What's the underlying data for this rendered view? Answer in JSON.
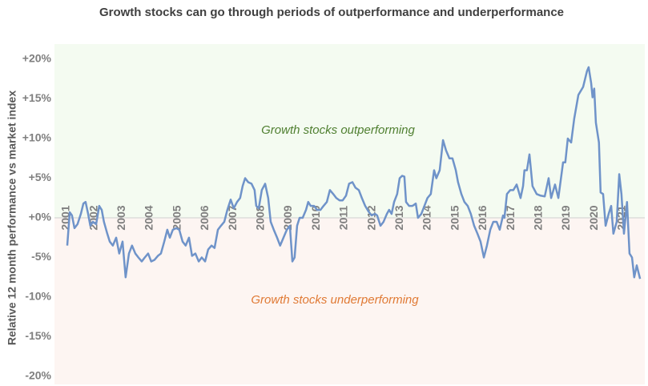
{
  "chart_data": {
    "type": "line",
    "title": "Growth stocks can go through periods of outperformance and underperformance",
    "ylabel": "Relative 12 month performance vs market index",
    "annotations": [
      {
        "text": "Growth stocks outperforming",
        "color": "#4f7f30"
      },
      {
        "text": "Growth stocks underperforming",
        "color": "#e07a35"
      }
    ],
    "xlim": [
      2000.57,
      2021.81
    ],
    "xticks": [
      2001,
      2002,
      2003,
      2004,
      2005,
      2006,
      2007,
      2008,
      2009,
      2010,
      2011,
      2012,
      2013,
      2014,
      2015,
      2016,
      2017,
      2018,
      2019,
      2020,
      2021
    ],
    "ylim": [
      -20,
      20
    ],
    "yticks": [
      {
        "value": 20,
        "label": "+20%"
      },
      {
        "value": 15,
        "label": "+15%"
      },
      {
        "value": 10,
        "label": "+10%"
      },
      {
        "value": 5,
        "label": "+5%"
      },
      {
        "value": 0,
        "label": "+0%"
      },
      {
        "value": -5,
        "label": "-5%"
      },
      {
        "value": -10,
        "label": "-10%"
      },
      {
        "value": -15,
        "label": "-15%"
      },
      {
        "value": -20,
        "label": "-20%"
      }
    ],
    "x": [
      2001.03,
      2001.12,
      2001.2,
      2001.29,
      2001.4,
      2001.52,
      2001.61,
      2001.69,
      2001.78,
      2001.86,
      2001.95,
      2002.07,
      2002.18,
      2002.27,
      2002.35,
      2002.47,
      2002.56,
      2002.67,
      2002.79,
      2002.9,
      2003.02,
      2003.13,
      2003.25,
      2003.36,
      2003.48,
      2003.59,
      2003.71,
      2003.82,
      2003.94,
      2004.05,
      2004.17,
      2004.29,
      2004.4,
      2004.52,
      2004.63,
      2004.72,
      2004.83,
      2004.95,
      2005.06,
      2005.18,
      2005.29,
      2005.41,
      2005.52,
      2005.64,
      2005.76,
      2005.87,
      2005.99,
      2006.1,
      2006.22,
      2006.33,
      2006.45,
      2006.56,
      2006.68,
      2006.79,
      2006.91,
      2007.02,
      2007.14,
      2007.25,
      2007.34,
      2007.43,
      2007.54,
      2007.66,
      2007.77,
      2007.83,
      2007.92,
      2008.03,
      2008.15,
      2008.26,
      2008.35,
      2008.46,
      2008.58,
      2008.69,
      2008.81,
      2008.93,
      2009.04,
      2009.13,
      2009.21,
      2009.3,
      2009.39,
      2009.5,
      2009.62,
      2009.7,
      2009.79,
      2009.91,
      2010.02,
      2010.14,
      2010.25,
      2010.37,
      2010.48,
      2010.6,
      2010.71,
      2010.83,
      2010.94,
      2011.06,
      2011.17,
      2011.29,
      2011.4,
      2011.52,
      2011.63,
      2011.75,
      2011.87,
      2011.98,
      2012.1,
      2012.18,
      2012.3,
      2012.41,
      2012.53,
      2012.61,
      2012.7,
      2012.79,
      2012.9,
      2012.99,
      2013.08,
      2013.16,
      2013.22,
      2013.33,
      2013.45,
      2013.57,
      2013.65,
      2013.77,
      2013.88,
      2013.99,
      2014.11,
      2014.23,
      2014.31,
      2014.43,
      2014.55,
      2014.66,
      2014.78,
      2014.89,
      2015.01,
      2015.09,
      2015.21,
      2015.32,
      2015.44,
      2015.55,
      2015.67,
      2015.79,
      2015.9,
      2016.02,
      2016.13,
      2016.25,
      2016.36,
      2016.48,
      2016.59,
      2016.71,
      2016.76,
      2016.85,
      2016.97,
      2017.08,
      2017.2,
      2017.34,
      2017.43,
      2017.48,
      2017.57,
      2017.66,
      2017.77,
      2017.92,
      2018.06,
      2018.21,
      2018.35,
      2018.44,
      2018.58,
      2018.7,
      2018.87,
      2018.95,
      2019.04,
      2019.16,
      2019.27,
      2019.42,
      2019.59,
      2019.73,
      2019.79,
      2019.88,
      2019.93,
      2019.99,
      2020.05,
      2020.16,
      2020.22,
      2020.31,
      2020.4,
      2020.51,
      2020.6,
      2020.68,
      2020.8,
      2020.89,
      2020.97,
      2021.06,
      2021.17,
      2021.26,
      2021.35,
      2021.43,
      2021.52,
      2021.64
    ],
    "series": [
      {
        "color": "#6f93c9",
        "values": [
          -3.5,
          0.7,
          0.3,
          -1.3,
          -0.8,
          0.5,
          1.8,
          2,
          0.5,
          -1,
          -0.5,
          -0.8,
          1.5,
          1,
          -0.5,
          -2,
          -3,
          -3.5,
          -2.5,
          -4.5,
          -3,
          -7.5,
          -4.5,
          -3.5,
          -4.5,
          -5,
          -5.5,
          -5,
          -4.5,
          -5.5,
          -5.3,
          -4.8,
          -4.5,
          -3,
          -1.5,
          -2.5,
          -1.5,
          -1.3,
          -1.5,
          -3,
          -3.5,
          -2.5,
          -4.8,
          -4.5,
          -5.5,
          -5,
          -5.5,
          -4,
          -3.5,
          -3.8,
          -1.5,
          -1,
          -0.5,
          1,
          2.3,
          1.2,
          2,
          2.5,
          4,
          5,
          4.5,
          4.3,
          3.5,
          1.5,
          1.2,
          3.5,
          4.3,
          2.5,
          -0.5,
          -1.5,
          -2.5,
          -3.5,
          -2.5,
          -1.5,
          -1,
          -5.5,
          -5,
          -1,
          0,
          0,
          1,
          2,
          1.5,
          1.5,
          1,
          1,
          1.5,
          2,
          3.5,
          3,
          2.5,
          2.2,
          2.2,
          2.8,
          4.3,
          4.5,
          3.8,
          3.5,
          2.5,
          1.5,
          0.8,
          0.3,
          0.5,
          0.3,
          -1,
          -0.5,
          0.5,
          1,
          0.5,
          2,
          3,
          5,
          5.3,
          5.2,
          2,
          1.5,
          1.5,
          1.8,
          0,
          0.5,
          1.5,
          2.5,
          3,
          6,
          5,
          6,
          9.8,
          8.5,
          7.5,
          7.5,
          6,
          4.5,
          3,
          2,
          1.5,
          0.5,
          -1,
          -2,
          -3,
          -5,
          -3.5,
          -1.5,
          -0.5,
          -0.5,
          -1.5,
          0.3,
          0,
          3,
          3.5,
          3.5,
          4.2,
          2.5,
          4,
          6,
          6,
          8,
          4,
          3,
          2.8,
          2.7,
          5,
          2.5,
          4.2,
          2.5,
          7,
          7,
          10,
          9.5,
          12.5,
          15.5,
          16.5,
          18.5,
          19,
          17,
          15.2,
          16.3,
          12,
          9.5,
          3.2,
          3,
          -1,
          0.5,
          1.5,
          -2,
          -0.5,
          5.5,
          3,
          -2,
          2,
          -4.5,
          -5,
          -7.5,
          -6,
          -7.7
        ]
      }
    ]
  }
}
